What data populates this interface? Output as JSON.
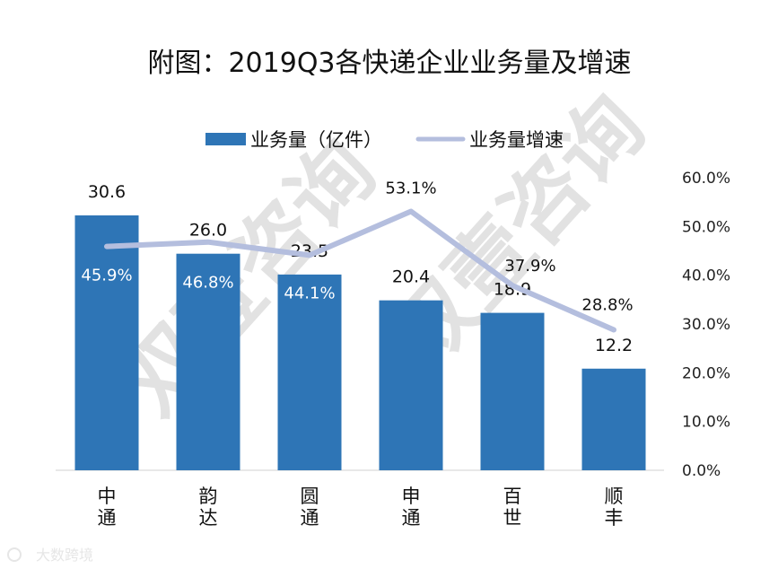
{
  "chart_data": {
    "type": "bar",
    "title": "附图：2019Q3各快递企业业务量及增速",
    "categories": [
      "中\n通",
      "韵\n达",
      "圆\n通",
      "申\n通",
      "百\n世",
      "顺\n丰"
    ],
    "series": [
      {
        "name": "业务量（亿件）",
        "type": "bar",
        "color": "#2e75b6",
        "values": [
          30.6,
          26.0,
          23.5,
          20.4,
          18.9,
          12.2
        ],
        "labels": [
          "30.6",
          "26.0",
          "23.5",
          "20.4",
          "18.9",
          "12.2"
        ]
      },
      {
        "name": "业务量增速",
        "type": "line",
        "color": "#b4bede",
        "axis": "right",
        "values": [
          45.9,
          46.8,
          44.1,
          53.1,
          37.9,
          28.8
        ],
        "labels": [
          "45.9%",
          "46.8%",
          "44.1%",
          "53.1%",
          "37.9%",
          "28.8%"
        ]
      }
    ],
    "y_left_range": [
      0,
      31
    ],
    "y_right_range": [
      0,
      60
    ],
    "y_right_ticks": [
      "0.0%",
      "10.0%",
      "20.0%",
      "30.0%",
      "40.0%",
      "50.0%",
      "60.0%"
    ],
    "legend_position": "top"
  },
  "watermark": "双壹咨询",
  "source_logo": "大数跨境"
}
